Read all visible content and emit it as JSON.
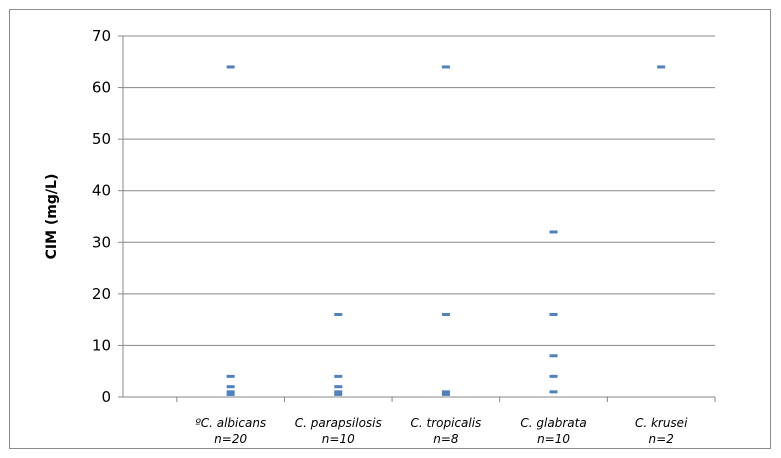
{
  "chart_data": {
    "type": "scatter",
    "title": "",
    "xlabel": "",
    "ylabel": "CIM (mg/L)",
    "ylim": [
      0,
      70
    ],
    "yticks": [
      0,
      10,
      20,
      30,
      40,
      50,
      60,
      70
    ],
    "grid": "horizontal",
    "legend": "none",
    "marker_color": "#4F81BD",
    "categories": [
      {
        "line1": "ºC. albicans",
        "line2": "n=20"
      },
      {
        "line1": "C. parapsilosis",
        "line2": "n=10"
      },
      {
        "line1": "C. tropicalis",
        "line2": "n=8"
      },
      {
        "line1": "C. glabrata",
        "line2": "n=10"
      },
      {
        "line1": "C. krusei",
        "line2": "n=2"
      }
    ],
    "points": [
      {
        "category": 0,
        "values": [
          64,
          4,
          2,
          1,
          0.5
        ]
      },
      {
        "category": 1,
        "values": [
          16,
          4,
          2,
          1,
          0.5
        ]
      },
      {
        "category": 2,
        "values": [
          64,
          16,
          1,
          0.5
        ]
      },
      {
        "category": 3,
        "values": [
          32,
          16,
          8,
          4,
          1
        ]
      },
      {
        "category": 4,
        "values": [
          64
        ]
      }
    ]
  }
}
